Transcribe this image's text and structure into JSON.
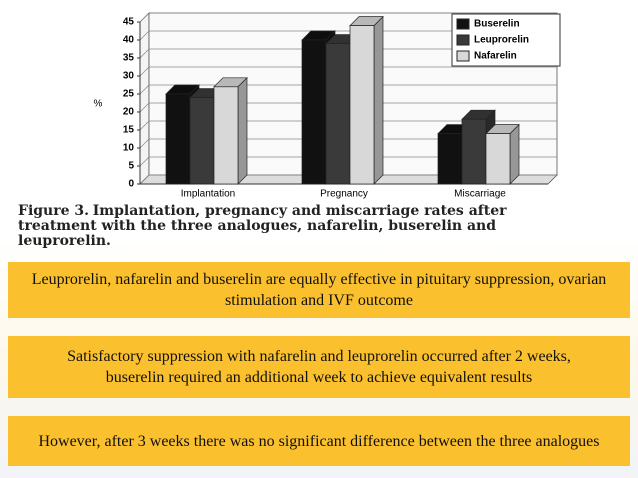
{
  "chart_data": {
    "type": "bar3d",
    "y_label": "%",
    "categories": [
      "Implantation",
      "Pregnancy",
      "Miscarriage"
    ],
    "series": [
      {
        "name": "Buserelin",
        "color": "#111111",
        "values": [
          25,
          40,
          14
        ]
      },
      {
        "name": "Leuprorelin",
        "color": "#3a3a3a",
        "values": [
          24,
          39,
          18
        ]
      },
      {
        "name": "Nafarelin",
        "color": "#d8d8d8",
        "values": [
          27,
          44,
          14
        ]
      }
    ],
    "ylim": [
      0,
      45
    ],
    "yticks": [
      0,
      5,
      10,
      15,
      20,
      25,
      30,
      35,
      40,
      45
    ],
    "grid": true,
    "legend": "top-right",
    "caption_label": "Figure 3.",
    "caption": "Implantation, pregnancy and miscarriage rates after treatment with the three analogues, nafarelin, buserelin and leuprorelin."
  },
  "slide": {
    "boxes": [
      "Leuprorelin, nafarelin and buserelin are equally effective in pituitary suppression, ovarian stimulation and IVF outcome",
      "Satisfactory suppression with nafarelin and leuprorelin occurred after 2 weeks, buserelin required an additional week to achieve equivalent results",
      "However, after 3 weeks there was no significant difference between the three analogues"
    ]
  }
}
